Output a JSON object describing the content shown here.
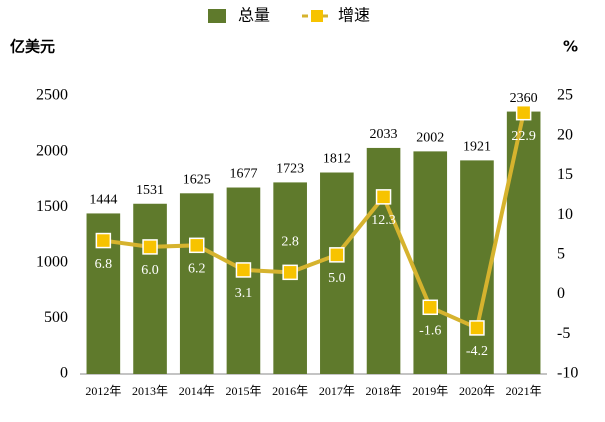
{
  "chart_data": {
    "type": "bar",
    "y_label": "亿美元",
    "y2_label": "%",
    "categories": [
      "2012年",
      "2013年",
      "2014年",
      "2015年",
      "2016年",
      "2017年",
      "2018年",
      "2019年",
      "2020年",
      "2021年"
    ],
    "series": [
      {
        "name": "总量",
        "type": "bar",
        "color": "#5f7a2c",
        "values": [
          1444,
          1531,
          1625,
          1677,
          1723,
          1812,
          2033,
          2002,
          1921,
          2360
        ]
      },
      {
        "name": "增速",
        "type": "line",
        "axis": "y2",
        "color": "#d6b32e",
        "marker_color": "#f7c300",
        "values": [
          6.8,
          6.0,
          6.2,
          3.1,
          2.8,
          5.0,
          12.3,
          -1.6,
          -4.2,
          22.9
        ],
        "value_labels": [
          "6.8",
          "6.0",
          "6.2",
          "3.1",
          "2.8",
          "5.0",
          "12.3",
          "-1.6",
          "-4.2",
          "22.9"
        ]
      }
    ],
    "ylim": [
      0,
      2500
    ],
    "yticks": [
      0,
      500,
      1000,
      1500,
      2000,
      2500
    ],
    "y2lim": [
      -10,
      25
    ],
    "y2ticks": [
      -10,
      -5,
      0,
      5,
      10,
      15,
      20,
      25
    ],
    "legend": "top"
  }
}
